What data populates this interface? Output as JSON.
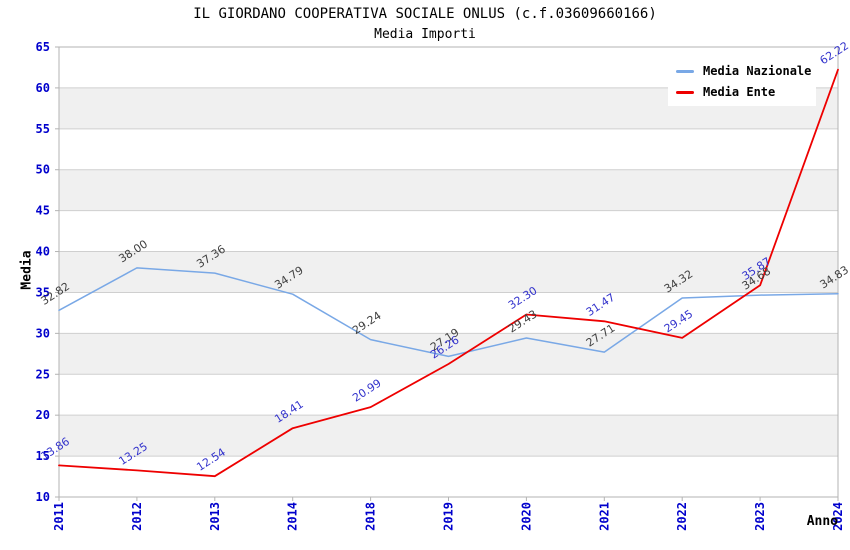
{
  "chart_data": {
    "type": "line",
    "title": "IL GIORDANO COOPERATIVA SOCIALE ONLUS (c.f.03609660166)",
    "subtitle": "Media Importi",
    "xlabel": "Anno",
    "ylabel": "Media",
    "categories": [
      "2011",
      "2012",
      "2013",
      "2014",
      "2018",
      "2019",
      "2020",
      "2021",
      "2022",
      "2023",
      "2024"
    ],
    "series": [
      {
        "name": "Media Nazionale",
        "color": "#79a8e6",
        "label_color": "#404040",
        "values": [
          32.82,
          38.0,
          37.36,
          34.79,
          29.24,
          27.19,
          29.43,
          27.71,
          34.32,
          34.68,
          34.83
        ]
      },
      {
        "name": "Media Ente",
        "color": "#ee0000",
        "label_color": "#3333cc",
        "values": [
          13.86,
          13.25,
          12.54,
          18.41,
          20.99,
          26.26,
          32.3,
          31.47,
          29.45,
          35.87,
          62.22
        ]
      }
    ],
    "ylim": [
      10,
      65
    ],
    "ytick_step": 5,
    "yticks": [
      10,
      15,
      20,
      25,
      30,
      35,
      40,
      45,
      50,
      55,
      60,
      65
    ],
    "grid": true,
    "band_fill": "#f0f0f0",
    "gridline_color": "#cfcfcf",
    "plot_border_color": "#b3b3b3",
    "tick_label_color": "#0000cc",
    "legend_position": "top-right"
  }
}
